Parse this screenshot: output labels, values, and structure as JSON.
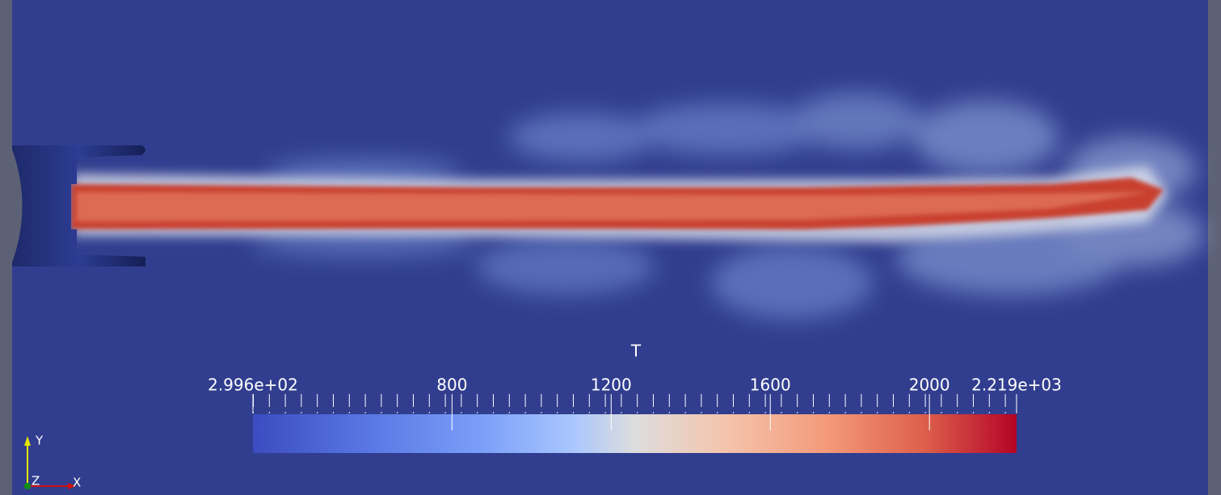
{
  "colorbar": {
    "title": "T",
    "range": [
      {
        "value": 299.6,
        "label": "2.996e+02"
      },
      {
        "value": 2219,
        "label": "2.219e+03"
      }
    ],
    "ticks": [
      800,
      1200,
      1600,
      2000
    ]
  },
  "axes_triad": {
    "y": "Y",
    "z": "Z",
    "x": "X"
  }
}
